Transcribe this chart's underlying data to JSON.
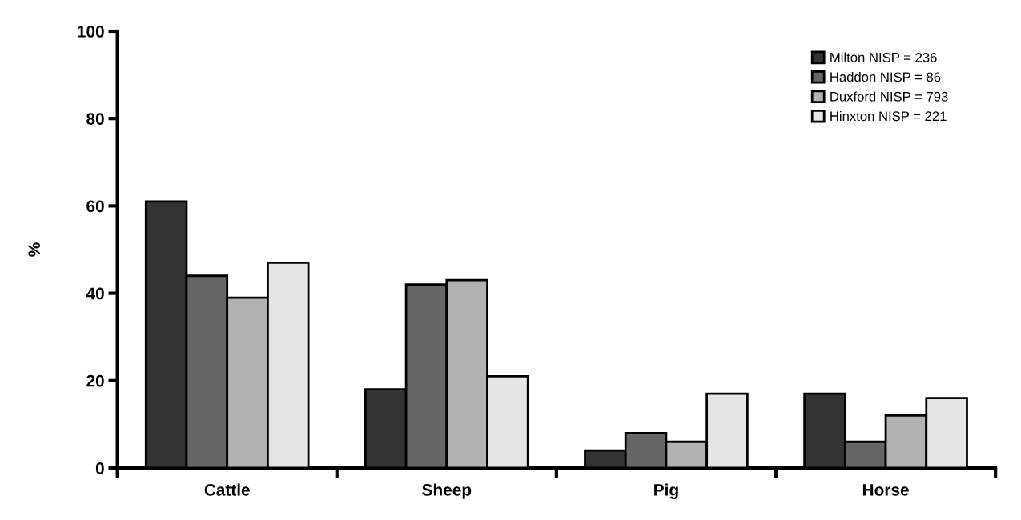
{
  "chart_data": {
    "type": "bar",
    "ylabel": "%",
    "categories": [
      "Cattle",
      "Sheep",
      "Pig",
      "Horse"
    ],
    "series": [
      {
        "name": "Milton NISP = 236",
        "color": "#333333",
        "values": [
          61,
          18,
          4,
          17
        ]
      },
      {
        "name": "Haddon NISP = 86",
        "color": "#666666",
        "values": [
          44,
          42,
          8,
          6
        ]
      },
      {
        "name": "Duxford NISP = 793",
        "color": "#b2b2b2",
        "values": [
          39,
          43,
          6,
          12
        ]
      },
      {
        "name": "Hinxton NISP = 221",
        "color": "#e5e5e5",
        "values": [
          47,
          21,
          17,
          16
        ]
      }
    ],
    "ylim": [
      0,
      100
    ],
    "yticks": [
      0,
      20,
      40,
      60,
      80,
      100
    ],
    "grid": false,
    "legend": "top right"
  }
}
